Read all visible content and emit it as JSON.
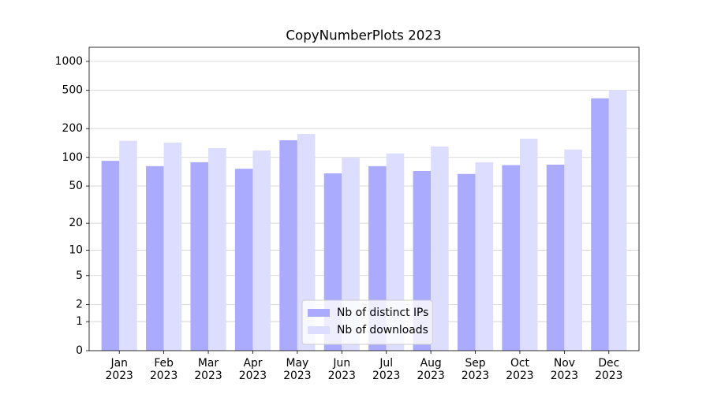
{
  "chart_data": {
    "type": "bar",
    "title": "CopyNumberPlots 2023",
    "yscale": "log1p",
    "categories": [
      "Jan\n2023",
      "Feb\n2023",
      "Mar\n2023",
      "Apr\n2023",
      "May\n2023",
      "Jun\n2023",
      "Jul\n2023",
      "Aug\n2023",
      "Sep\n2023",
      "Oct\n2023",
      "Nov\n2023",
      "Dec\n2023"
    ],
    "series": [
      {
        "name": "Nb of distinct IPs",
        "color": "#aaaaff",
        "values": [
          92,
          81,
          89,
          76,
          151,
          68,
          81,
          72,
          67,
          83,
          84,
          413
        ]
      },
      {
        "name": "Nb of downloads",
        "color": "#ddddff",
        "values": [
          149,
          143,
          125,
          118,
          176,
          99,
          110,
          130,
          89,
          157,
          121,
          498
        ]
      }
    ],
    "ylim": [
      0,
      1400
    ],
    "yticks": [
      0,
      1,
      2,
      5,
      10,
      20,
      50,
      100,
      200,
      500,
      1000
    ],
    "grid": true,
    "legend": "lower center"
  }
}
